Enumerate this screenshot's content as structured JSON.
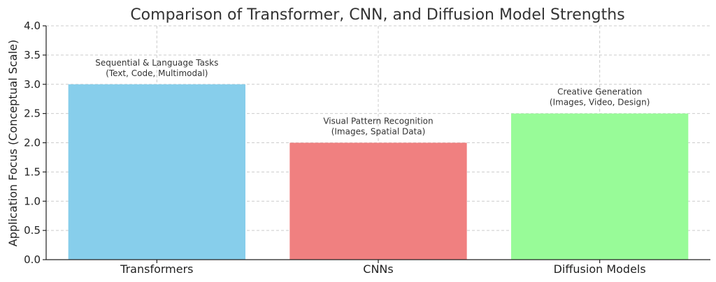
{
  "chart_data": {
    "type": "bar",
    "title": "Comparison of Transformer, CNN, and Diffusion Model Strengths",
    "xlabel": "",
    "ylabel": "Application Focus (Conceptual Scale)",
    "ylim": [
      0,
      4.0
    ],
    "yticks": [
      "0.0",
      "0.5",
      "1.0",
      "1.5",
      "2.0",
      "2.5",
      "3.0",
      "3.5",
      "4.0"
    ],
    "grid": true,
    "categories": [
      "Transformers",
      "CNNs",
      "Diffusion Models"
    ],
    "values": [
      3.0,
      2.0,
      2.5
    ],
    "colors": [
      "#87ceeb",
      "#f08080",
      "#98fb98"
    ],
    "annotations": [
      [
        "Sequential & Language Tasks",
        "(Text, Code, Multimodal)"
      ],
      [
        "Visual Pattern Recognition",
        "(Images, Spatial Data)"
      ],
      [
        "Creative Generation",
        "(Images, Video, Design)"
      ]
    ]
  }
}
